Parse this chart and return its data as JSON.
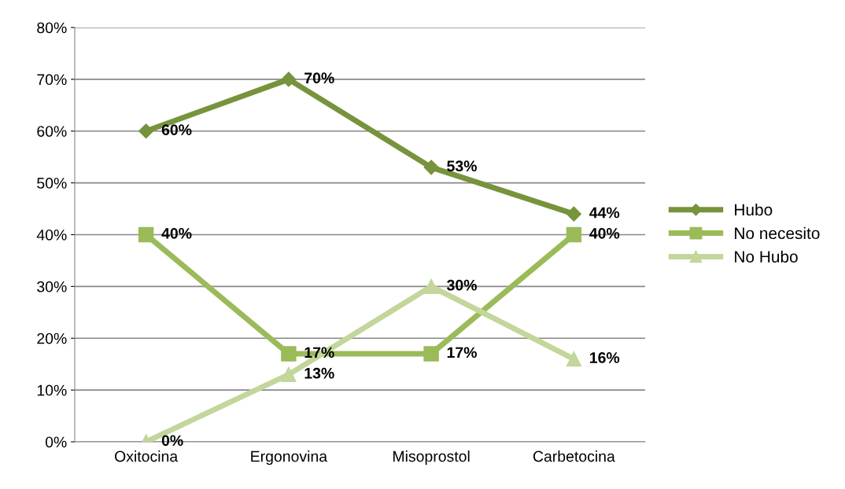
{
  "chart_data": {
    "type": "line",
    "categories": [
      "Oxitocina",
      "Ergonovina",
      "Misoprostol",
      "Carbetocina"
    ],
    "series": [
      {
        "name": "Hubo",
        "color": "#77933c",
        "marker": "diamond",
        "values": [
          60,
          70,
          53,
          44
        ],
        "value_labels": [
          "60%",
          "70%",
          "53%",
          "44%"
        ]
      },
      {
        "name": "No necesito",
        "color": "#9bbb59",
        "marker": "square",
        "values": [
          40,
          17,
          17,
          40
        ],
        "value_labels": [
          "40%",
          "17%",
          "17%",
          "40%"
        ]
      },
      {
        "name": "No Hubo",
        "color": "#c3d69b",
        "marker": "triangle",
        "values": [
          0,
          13,
          30,
          16
        ],
        "value_labels": [
          "0%",
          "13%",
          "30%",
          "16%"
        ]
      }
    ],
    "ylim": [
      0,
      80
    ],
    "yticks": [
      {
        "value": 0,
        "label": "0%"
      },
      {
        "value": 10,
        "label": "10%"
      },
      {
        "value": 20,
        "label": "20%"
      },
      {
        "value": 30,
        "label": "30%"
      },
      {
        "value": 40,
        "label": "40%"
      },
      {
        "value": 50,
        "label": "50%"
      },
      {
        "value": 60,
        "label": "60%"
      },
      {
        "value": 70,
        "label": "70%"
      },
      {
        "value": 80,
        "label": "80%"
      }
    ],
    "grid": "y",
    "legend": "right",
    "line_style": "solid"
  }
}
